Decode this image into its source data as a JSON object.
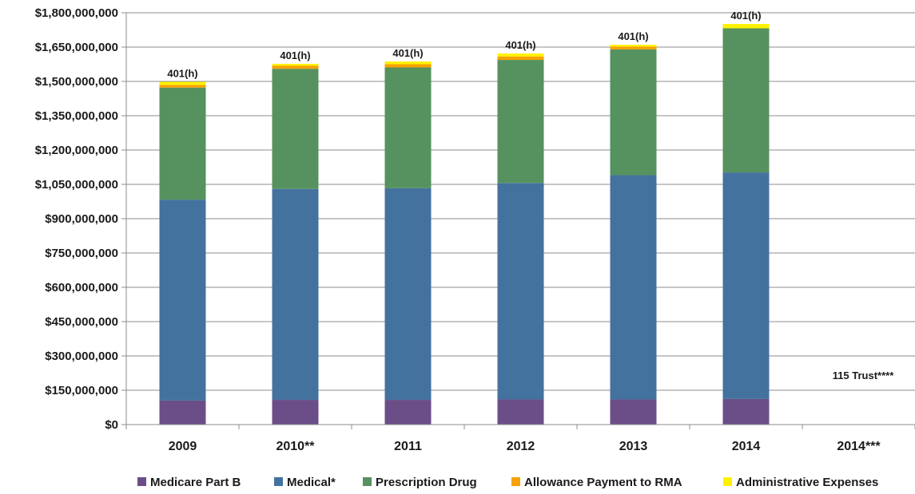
{
  "chart_data": {
    "type": "bar",
    "stacked": true,
    "categories": [
      "2009",
      "2010**",
      "2011",
      "2012",
      "2013",
      "2014",
      "2014***"
    ],
    "series": [
      {
        "name": "Medicare Part B",
        "color": "#6B4E87",
        "values": [
          105000000,
          108000000,
          108000000,
          110000000,
          110000000,
          112000000,
          0
        ]
      },
      {
        "name": "Medical*",
        "color": "#44729F",
        "values": [
          878000000,
          922000000,
          925000000,
          946000000,
          980000000,
          990000000,
          0
        ]
      },
      {
        "name": "Prescription Drug",
        "color": "#55925F",
        "values": [
          490000000,
          525000000,
          528000000,
          538000000,
          550000000,
          630000000,
          0
        ]
      },
      {
        "name": "Allowance Payment to RMA",
        "color": "#F5A202",
        "values": [
          12000000,
          14000000,
          14000000,
          15000000,
          12000000,
          0,
          0
        ]
      },
      {
        "name": "Administrative Expenses",
        "color": "#FFF200",
        "values": [
          13000000,
          8000000,
          12000000,
          13000000,
          8000000,
          19000000,
          0
        ]
      }
    ],
    "bar_labels": [
      "401(h)",
      "401(h)",
      "401(h)",
      "401(h)",
      "401(h)",
      "401(h)",
      ""
    ],
    "annotation": "115 Trust****",
    "yticks": [
      "$0",
      "$150,000,000",
      "$300,000,000",
      "$450,000,000",
      "$600,000,000",
      "$750,000,000",
      "$900,000,000",
      "$1,050,000,000",
      "$1,200,000,000",
      "$1,350,000,000",
      "$1,500,000,000",
      "$1,650,000,000",
      "$1,800,000,000"
    ],
    "ylim": [
      0,
      1800000000
    ],
    "ystep": 150000000,
    "grid": true,
    "legend": "bottom"
  }
}
